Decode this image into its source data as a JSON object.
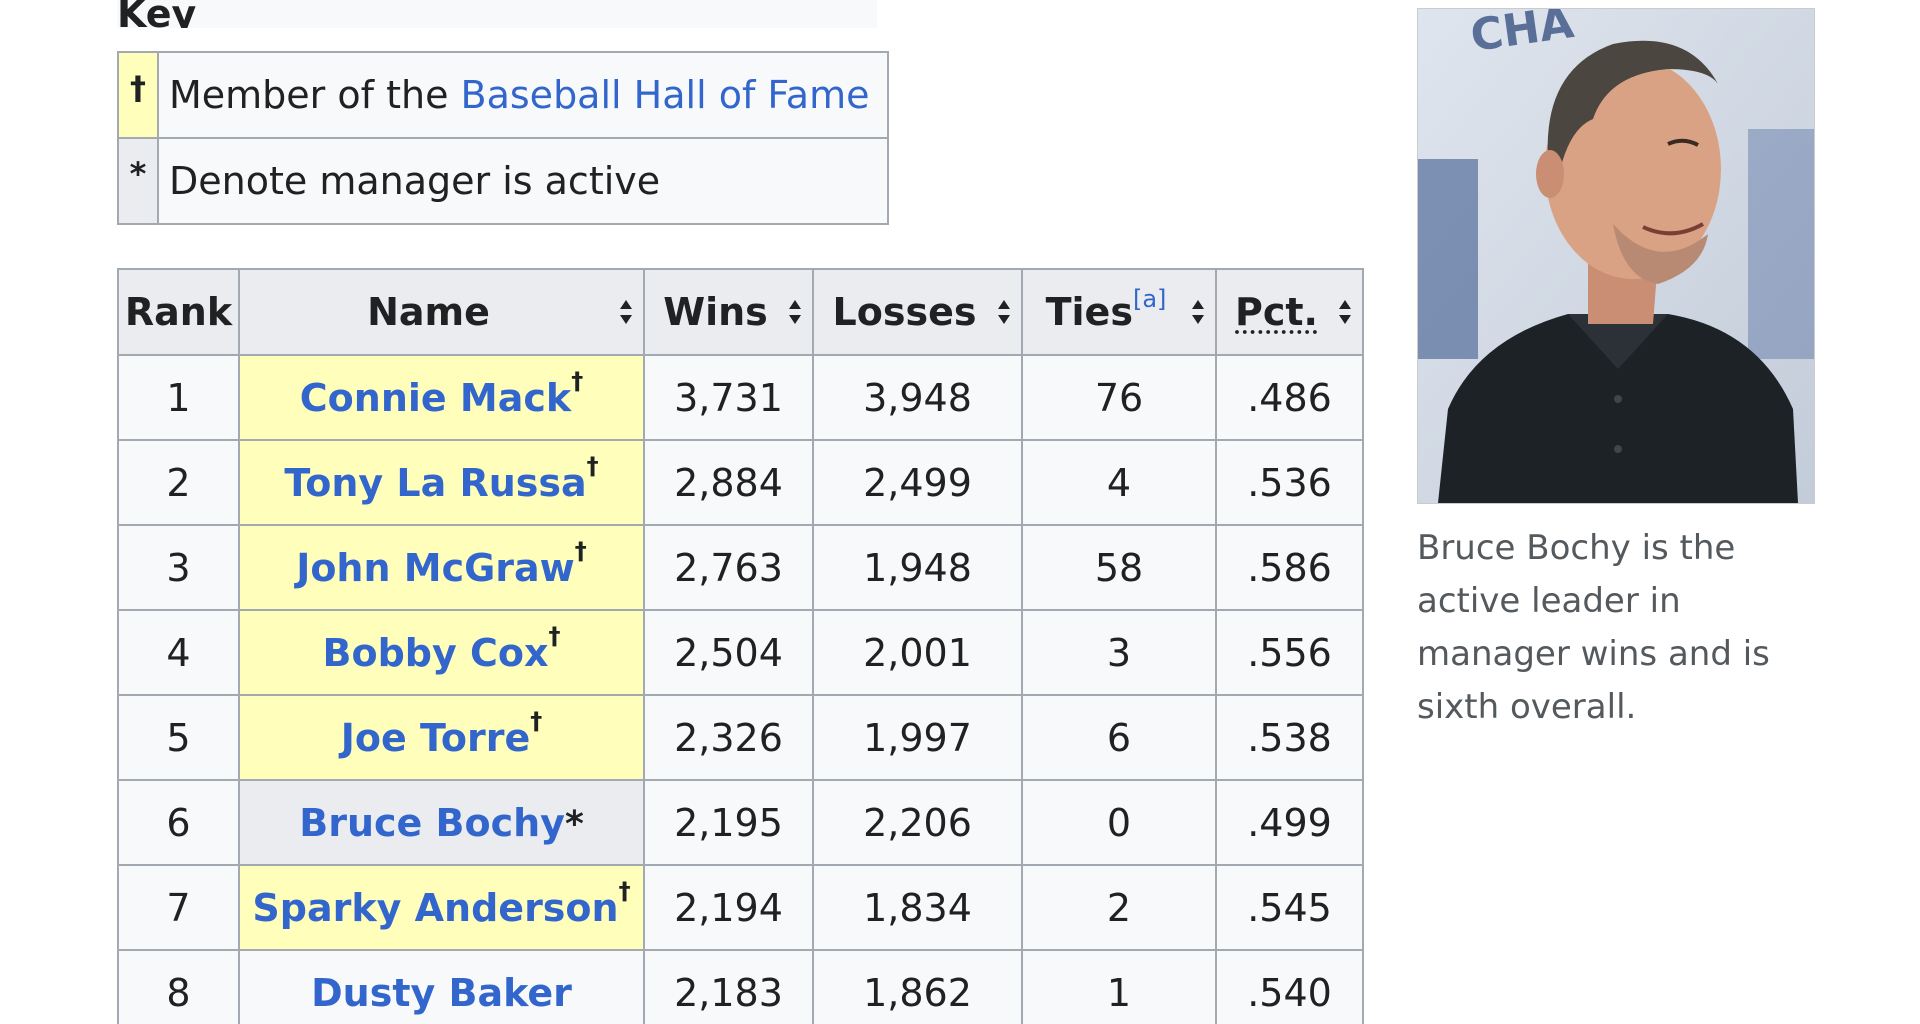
{
  "key": {
    "title": "Key",
    "rows": [
      {
        "symbol": "†",
        "text_prefix": "Member of the ",
        "link": "Baseball Hall of Fame"
      },
      {
        "symbol": "*",
        "text": "Denote manager is active"
      }
    ]
  },
  "table": {
    "headers": {
      "rank": "Rank",
      "name": "Name",
      "wins": "Wins",
      "losses": "Losses",
      "ties": "Ties",
      "ties_note": "[a]",
      "pct": "Pct."
    },
    "rows": [
      {
        "rank": "1",
        "name": "Connie Mack",
        "mark": "†",
        "wins": "3,731",
        "losses": "3,948",
        "ties": "76",
        "pct": ".486"
      },
      {
        "rank": "2",
        "name": "Tony La Russa",
        "mark": "†",
        "wins": "2,884",
        "losses": "2,499",
        "ties": "4",
        "pct": ".536"
      },
      {
        "rank": "3",
        "name": "John McGraw",
        "mark": "†",
        "wins": "2,763",
        "losses": "1,948",
        "ties": "58",
        "pct": ".586"
      },
      {
        "rank": "4",
        "name": "Bobby Cox",
        "mark": "†",
        "wins": "2,504",
        "losses": "2,001",
        "ties": "3",
        "pct": ".556"
      },
      {
        "rank": "5",
        "name": "Joe Torre",
        "mark": "†",
        "wins": "2,326",
        "losses": "1,997",
        "ties": "6",
        "pct": ".538"
      },
      {
        "rank": "6",
        "name": "Bruce Bochy",
        "mark": "*",
        "wins": "2,195",
        "losses": "2,206",
        "ties": "0",
        "pct": ".499"
      },
      {
        "rank": "7",
        "name": "Sparky Anderson",
        "mark": "†",
        "wins": "2,194",
        "losses": "1,834",
        "ties": "2",
        "pct": ".545"
      },
      {
        "rank": "8",
        "name": "Dusty Baker",
        "mark": "",
        "wins": "2,183",
        "losses": "1,862",
        "ties": "1",
        "pct": ".540"
      }
    ]
  },
  "photo": {
    "caption": "Bruce Bochy is the active leader in manager wins and is sixth overall.",
    "backdrop_text": "CHA"
  },
  "colors": {
    "link": "#3366cc",
    "hof_highlight": "#ffffbb",
    "header_bg": "#eaecf0",
    "border": "#a2a9b1"
  }
}
